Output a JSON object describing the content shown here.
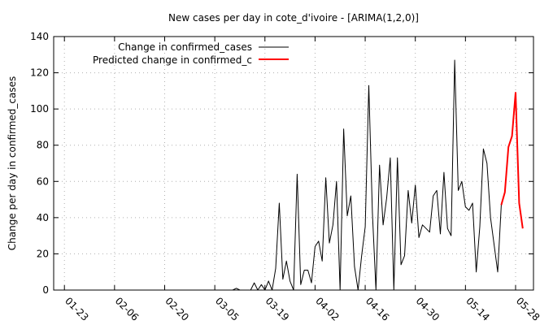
{
  "chart_data": {
    "type": "line",
    "title": "New cases per day in cote_d'ivoire -  [ARIMA(1,2,0)]",
    "xlabel": "",
    "ylabel": "Change per day in confirmed_cases",
    "ylim": [
      0,
      140
    ],
    "yticks": [
      0,
      20,
      40,
      60,
      80,
      100,
      120,
      140
    ],
    "xticks": [
      "01-23",
      "02-06",
      "02-20",
      "03-05",
      "03-19",
      "04-02",
      "04-16",
      "04-30",
      "05-14",
      "05-28"
    ],
    "xlim": [
      "01-20",
      "06-02"
    ],
    "grid": true,
    "legend_position": "top-left",
    "series": [
      {
        "name": "Change in confirmed_cases",
        "color": "#000000",
        "x": [
          "03-10",
          "03-11",
          "03-12",
          "03-13",
          "03-14",
          "03-15",
          "03-16",
          "03-17",
          "03-18",
          "03-19",
          "03-20",
          "03-21",
          "03-22",
          "03-23",
          "03-24",
          "03-25",
          "03-26",
          "03-27",
          "03-28",
          "03-29",
          "03-30",
          "03-31",
          "04-01",
          "04-02",
          "04-03",
          "04-04",
          "04-05",
          "04-06",
          "04-07",
          "04-08",
          "04-09",
          "04-10",
          "04-11",
          "04-12",
          "04-13",
          "04-14",
          "04-15",
          "04-16",
          "04-17",
          "04-18",
          "04-19",
          "04-20",
          "04-21",
          "04-22",
          "04-23",
          "04-24",
          "04-25",
          "04-26",
          "04-27",
          "04-28",
          "04-29",
          "04-30",
          "05-01",
          "05-02",
          "05-03",
          "05-04",
          "05-05",
          "05-06",
          "05-07",
          "05-08",
          "05-09",
          "05-10",
          "05-11",
          "05-12",
          "05-13",
          "05-14",
          "05-15",
          "05-16",
          "05-17",
          "05-18",
          "05-19",
          "05-20",
          "05-21",
          "05-22",
          "05-23",
          "05-24",
          "05-25"
        ],
        "values": [
          0,
          1,
          0,
          0,
          0,
          0,
          4,
          0,
          3,
          0,
          5,
          0,
          12,
          48,
          6,
          16,
          5,
          0,
          64,
          3,
          11,
          11,
          4,
          24,
          27,
          16,
          62,
          26,
          36,
          60,
          0,
          89,
          41,
          52,
          13,
          0,
          19,
          35,
          113,
          43,
          0,
          69,
          36,
          51,
          73,
          0,
          73,
          14,
          19,
          55,
          37,
          58,
          29,
          36,
          34,
          32,
          52,
          55,
          31,
          65,
          34,
          30,
          127,
          55,
          60,
          46,
          44,
          48,
          10,
          35,
          78,
          70,
          40,
          25,
          10,
          47,
          54
        ]
      },
      {
        "name": "Predicted change in confirmed_c",
        "color": "#ff0000",
        "x": [
          "05-24",
          "05-25",
          "05-26",
          "05-27",
          "05-28",
          "05-29",
          "05-30"
        ],
        "values": [
          47,
          54,
          79,
          85,
          109,
          48,
          34
        ]
      }
    ]
  }
}
